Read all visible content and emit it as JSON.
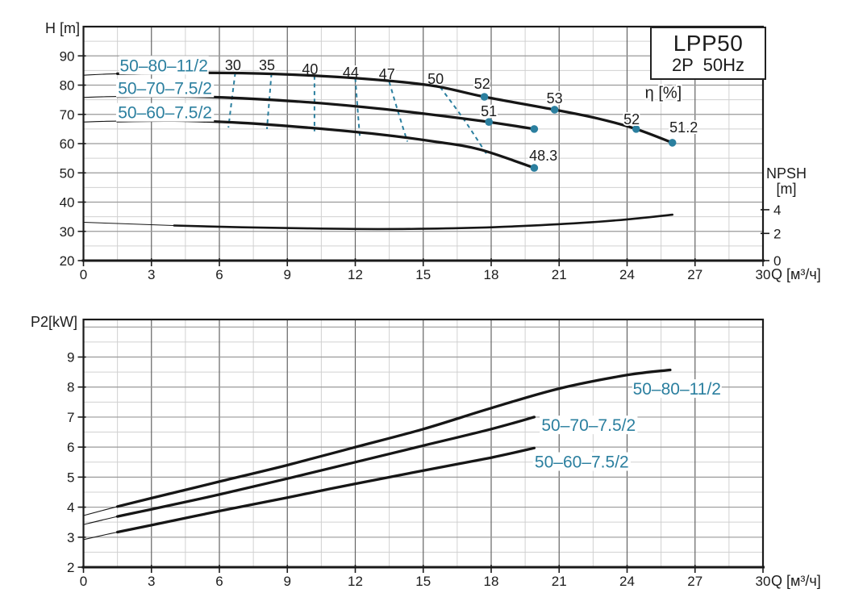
{
  "title_box": {
    "model": "LPP50",
    "spec": "2P  50Hz"
  },
  "colors": {
    "accent_teal": "#2b7f9f",
    "curve_black": "#161616",
    "grid_major_h": "#9a9a9a",
    "grid_major_v": "#646464",
    "grid_minor": "#d0d0d0",
    "frame": "#1a1a1a"
  },
  "chart_data": [
    {
      "type": "line",
      "title": "Head vs flow (H-Q) curves with efficiency points and NPSH curve",
      "xlabel": "Q [м³/ч]",
      "ylabel": "H [m]",
      "xlim": [
        0,
        30
      ],
      "ylim": [
        20,
        100
      ],
      "x_major": 3,
      "x_minor": 1.5,
      "y_major": 10,
      "y_minor": 5,
      "x_tick_labels": [
        0,
        3,
        6,
        9,
        12,
        15,
        18,
        21,
        24,
        27,
        30
      ],
      "y_tick_labels": [
        20,
        30,
        40,
        50,
        60,
        70,
        80,
        90
      ],
      "grid": "on",
      "eta_axis_label": "η [%]",
      "eta_axis_label_pos": [
        25.6,
        77.5
      ],
      "y2_axis": {
        "label_line1": "NPSH",
        "label_line2": "[m]",
        "ticks": [
          {
            "label": "0",
            "at_h": 20
          },
          {
            "label": "2",
            "at_h": 29.3
          },
          {
            "label": "4",
            "at_h": 37.4
          }
        ]
      },
      "series": [
        {
          "name": "50-80-11/2",
          "label": "50–80–11/2",
          "label_pos": [
            3.55,
            86.8
          ],
          "thin_until": 1.5,
          "points": [
            [
              0,
              83.4
            ],
            [
              1.5,
              83.9
            ],
            [
              4,
              84.2
            ],
            [
              7,
              84.1
            ],
            [
              10,
              83.3
            ],
            [
              13,
              81.8
            ],
            [
              15.5,
              79.7
            ],
            [
              17.7,
              76.0
            ],
            [
              20.8,
              71.6
            ],
            [
              22.7,
              68.6
            ],
            [
              24.4,
              65.0
            ],
            [
              26,
              60.3
            ]
          ],
          "markers": [
            {
              "q": 17.7,
              "h": 76.0,
              "label": "52",
              "label_pos": [
                17.6,
                80.4
              ]
            },
            {
              "q": 20.8,
              "h": 71.6,
              "label": "53",
              "label_pos": [
                20.8,
                75.4
              ]
            },
            {
              "q": 24.4,
              "h": 65.0,
              "label": "52",
              "label_pos": [
                24.2,
                68.3
              ]
            },
            {
              "q": 26.0,
              "h": 60.3,
              "label": "51.2",
              "label_pos": [
                26.5,
                65.5
              ]
            }
          ]
        },
        {
          "name": "50-70-7.5/2",
          "label": "50–70–7.5/2",
          "label_pos": [
            3.6,
            79.0
          ],
          "thin_until": 1.5,
          "points": [
            [
              0,
              75.8
            ],
            [
              1.5,
              76.1
            ],
            [
              4,
              76.2
            ],
            [
              7,
              75.5
            ],
            [
              10,
              74.1
            ],
            [
              13,
              72.0
            ],
            [
              15.5,
              69.8
            ],
            [
              17.9,
              67.4
            ],
            [
              19.9,
              65.0
            ]
          ],
          "markers": [
            {
              "q": 17.9,
              "h": 67.4,
              "label": "51",
              "label_pos": [
                17.9,
                71.0
              ]
            },
            {
              "q": 19.9,
              "h": 65.0,
              "label": "",
              "label_pos": [
                19.9,
                65.0
              ]
            }
          ]
        },
        {
          "name": "50-60-7.5/2",
          "label": "50–60–7.5/2",
          "label_pos": [
            3.6,
            70.7
          ],
          "thin_until": 1.5,
          "points": [
            [
              0,
              67.4
            ],
            [
              1.5,
              67.7
            ],
            [
              4,
              67.9
            ],
            [
              7,
              67.1
            ],
            [
              10,
              65.4
            ],
            [
              13,
              63.2
            ],
            [
              15.5,
              60.7
            ],
            [
              17.5,
              58.0
            ],
            [
              19.9,
              51.7
            ]
          ],
          "markers": [
            {
              "q": 19.9,
              "h": 51.7,
              "label": "48.3",
              "label_pos": [
                20.3,
                55.9
              ]
            }
          ]
        },
        {
          "name": "NPSH",
          "label": "",
          "thin_until": 2.5,
          "points": [
            [
              0,
              33.1
            ],
            [
              1.5,
              32.7
            ],
            [
              4,
              32.0
            ],
            [
              7,
              31.4
            ],
            [
              10,
              31.0
            ],
            [
              13,
              30.8
            ],
            [
              16,
              31.0
            ],
            [
              19,
              31.7
            ],
            [
              22,
              32.9
            ],
            [
              24,
              34.1
            ],
            [
              26,
              35.7
            ]
          ],
          "markers": []
        }
      ],
      "efficiency_contours": [
        {
          "label": "30",
          "label_pos": [
            6.6,
            86.8
          ],
          "path": [
            [
              6.7,
              84.2
            ],
            [
              6.55,
              75.0
            ],
            [
              6.4,
              65.5
            ]
          ]
        },
        {
          "label": "35",
          "label_pos": [
            8.1,
            86.8
          ],
          "path": [
            [
              8.3,
              84.0
            ],
            [
              8.2,
              74.5
            ],
            [
              8.1,
              65.0
            ]
          ]
        },
        {
          "label": "40",
          "label_pos": [
            10.0,
            85.4
          ],
          "path": [
            [
              10.2,
              83.2
            ],
            [
              10.2,
              73.5
            ],
            [
              10.2,
              64.2
            ]
          ]
        },
        {
          "label": "44",
          "label_pos": [
            11.8,
            84.3
          ],
          "path": [
            [
              12.0,
              82.4
            ],
            [
              12.1,
              72.2
            ],
            [
              12.2,
              62.5
            ]
          ]
        },
        {
          "label": "47",
          "label_pos": [
            13.4,
            83.7
          ],
          "path": [
            [
              13.5,
              81.1
            ],
            [
              13.9,
              70.6
            ],
            [
              14.3,
              60.7
            ]
          ]
        },
        {
          "label": "50",
          "label_pos": [
            15.55,
            82.1
          ],
          "path": [
            [
              15.75,
              79.3
            ],
            [
              16.8,
              68.2
            ],
            [
              17.8,
              56.4
            ]
          ]
        }
      ]
    },
    {
      "type": "line",
      "title": "Shaft power vs flow (P2-Q) curves",
      "xlabel": "Q [м³/ч]",
      "ylabel": "P2[kW]",
      "xlim": [
        0,
        30
      ],
      "ylim": [
        2,
        10.25
      ],
      "x_major": 3,
      "x_minor": 1.5,
      "y_major": 1,
      "y_minor": 0.5,
      "x_tick_labels": [
        0,
        3,
        6,
        9,
        12,
        15,
        18,
        21,
        24,
        27,
        30
      ],
      "y_tick_labels": [
        2,
        3,
        4,
        5,
        6,
        7,
        8,
        9
      ],
      "grid": "on",
      "series": [
        {
          "name": "50-80-11/2",
          "label": "50–80–11/2",
          "label_pos": [
            26.2,
            7.95
          ],
          "thin_until": 1.5,
          "points": [
            [
              0,
              3.72
            ],
            [
              1.5,
              4.02
            ],
            [
              3,
              4.3
            ],
            [
              6,
              4.85
            ],
            [
              9,
              5.4
            ],
            [
              12,
              6.0
            ],
            [
              15,
              6.6
            ],
            [
              18,
              7.3
            ],
            [
              21,
              7.95
            ],
            [
              24,
              8.4
            ],
            [
              25.9,
              8.57
            ]
          ],
          "markers": []
        },
        {
          "name": "50-70-7.5/2",
          "label": "50–70–7.5/2",
          "label_pos": [
            22.3,
            6.74
          ],
          "thin_until": 1.5,
          "points": [
            [
              0,
              3.42
            ],
            [
              1.5,
              3.69
            ],
            [
              3,
              3.93
            ],
            [
              6,
              4.42
            ],
            [
              9,
              4.95
            ],
            [
              12,
              5.5
            ],
            [
              15,
              6.05
            ],
            [
              18,
              6.6
            ],
            [
              19.9,
              7.0
            ]
          ],
          "markers": []
        },
        {
          "name": "50-60-7.5/2",
          "label": "50–60–7.5/2",
          "label_pos": [
            22.0,
            5.52
          ],
          "thin_until": 1.5,
          "points": [
            [
              0,
              2.92
            ],
            [
              1.5,
              3.17
            ],
            [
              3,
              3.4
            ],
            [
              6,
              3.87
            ],
            [
              9,
              4.32
            ],
            [
              12,
              4.78
            ],
            [
              15,
              5.22
            ],
            [
              18,
              5.65
            ],
            [
              19.9,
              5.97
            ]
          ],
          "markers": []
        }
      ]
    }
  ]
}
